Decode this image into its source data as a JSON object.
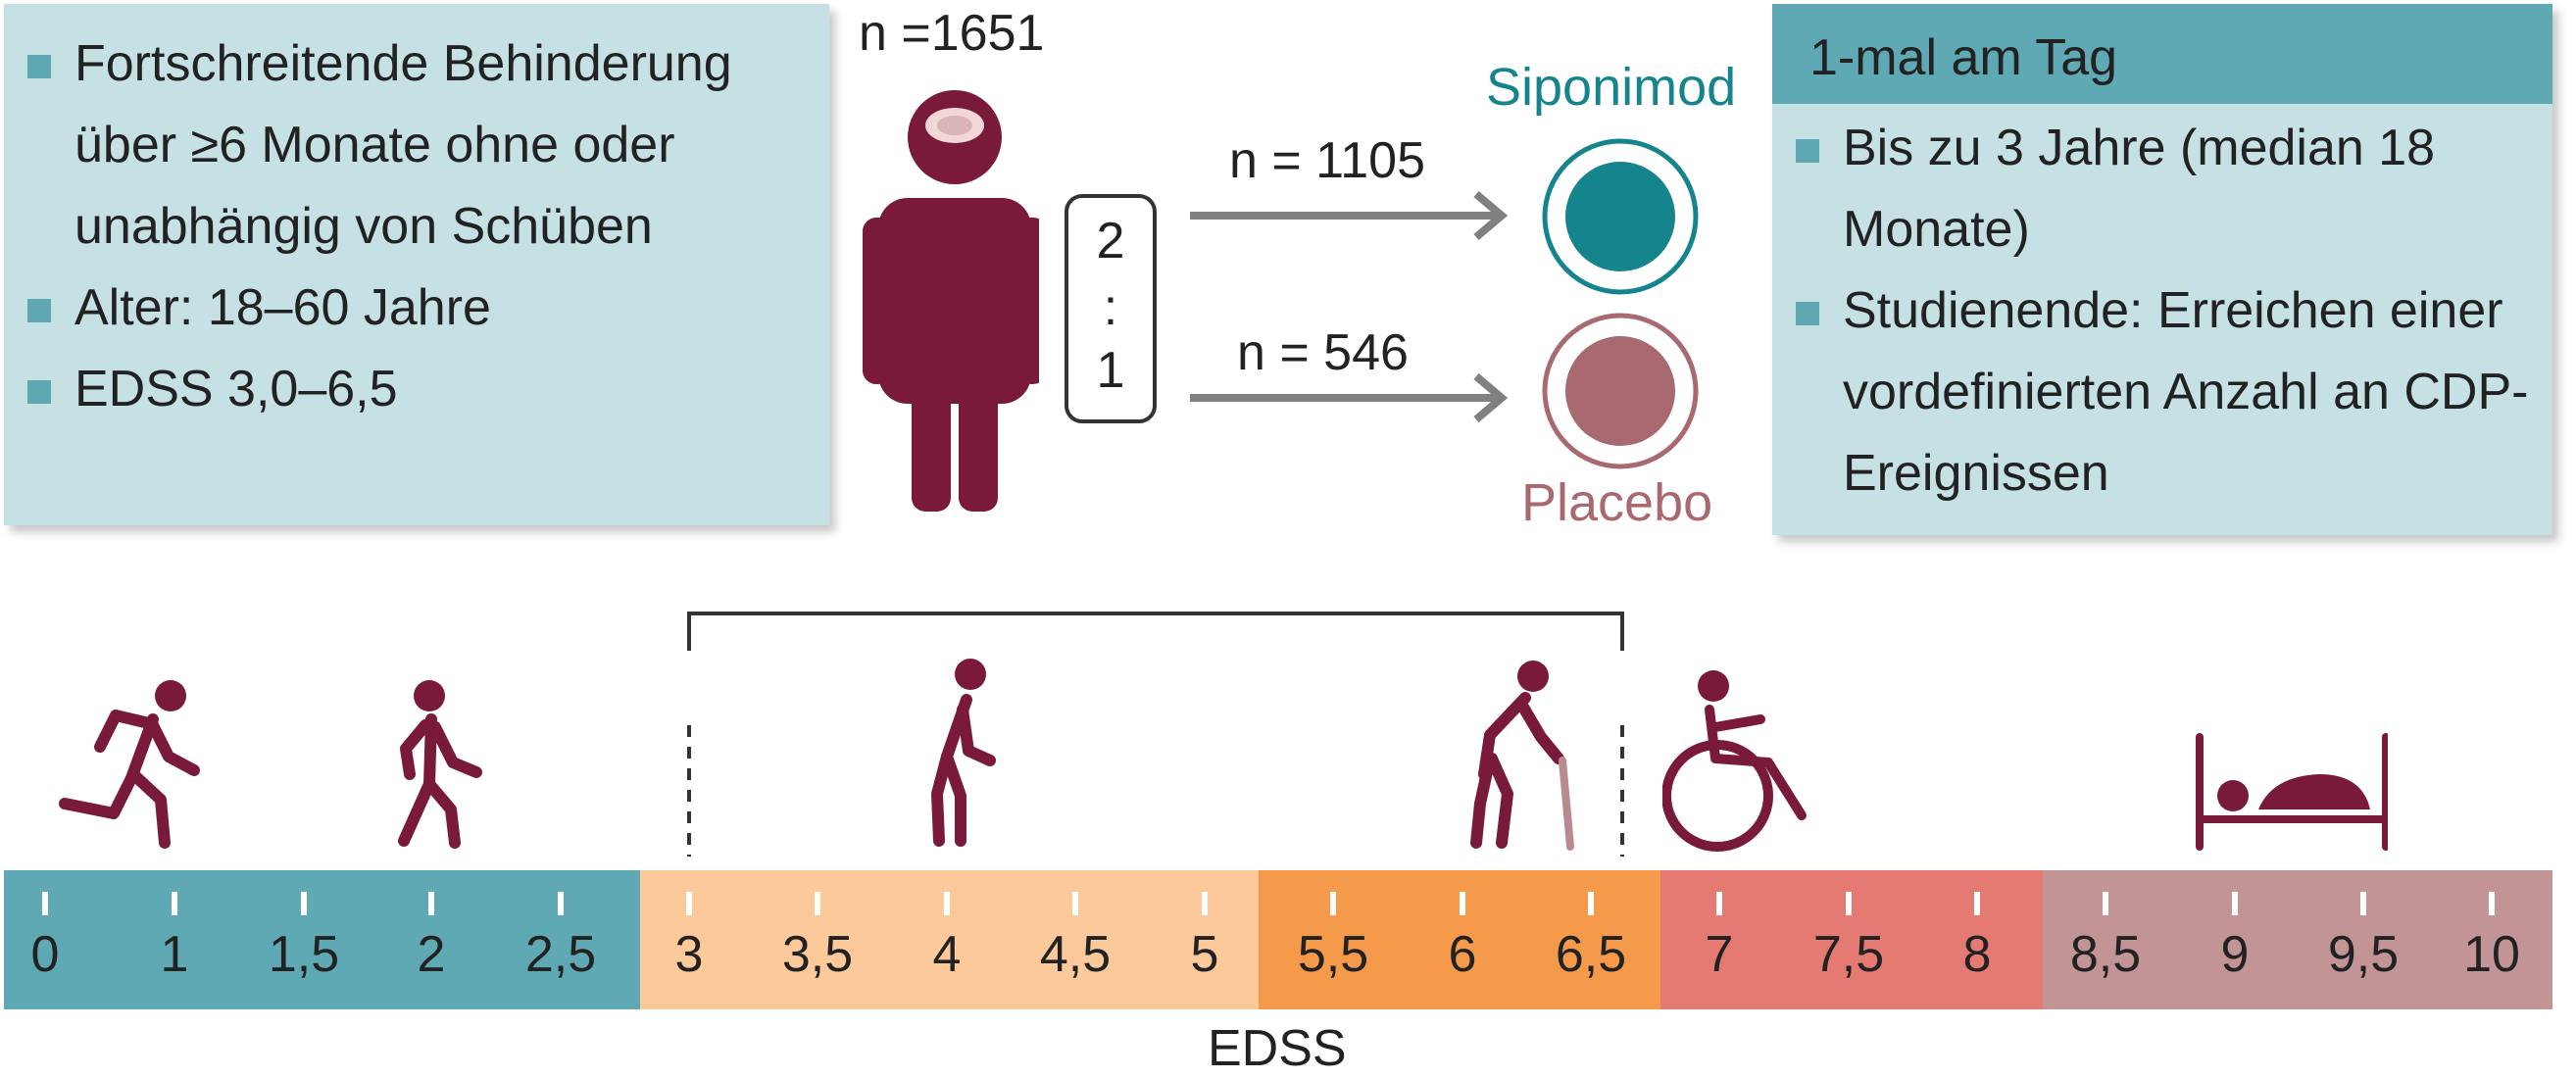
{
  "inclusion_criteria": {
    "items": [
      "Fortschreitende Behinderung über ≥6 Monate ohne oder unabhängig von Schüben",
      "Alter: 18–60 Jahre",
      "EDSS 3,0–6,5"
    ]
  },
  "study": {
    "total_n": "n =1651",
    "ratio_top": "2",
    "ratio_sep": ":",
    "ratio_bottom": "1",
    "arm_siponimod_n": "n = 1105",
    "arm_placebo_n": "n = 546",
    "arm_siponimod_label": "Siponimod",
    "arm_placebo_label": "Placebo"
  },
  "treatment_box": {
    "header": "1-mal am Tag",
    "items": [
      "Bis zu 3 Jahre (median 18 Monate)",
      "Studienende: Erreichen einer vordefinierten Anzahl an CDP-Ereignissen"
    ]
  },
  "edss_scale": {
    "axis_label": "EDSS",
    "ticks": [
      "0",
      "1",
      "1,5",
      "2",
      "2,5",
      "3",
      "3,5",
      "4",
      "4,5",
      "5",
      "5,5",
      "6",
      "6,5",
      "7",
      "7,5",
      "8",
      "8,5",
      "9",
      "9,5",
      "10"
    ],
    "segments": [
      {
        "from": 0,
        "to": 2.5,
        "color": "#5ea9b3"
      },
      {
        "from": 3,
        "to": 5,
        "color": "#fbc99a"
      },
      {
        "from": 5.5,
        "to": 6.5,
        "color": "#f59a4a"
      },
      {
        "from": 7,
        "to": 8,
        "color": "#e57a73"
      },
      {
        "from": 8.5,
        "to": 10,
        "color": "#c39495"
      }
    ],
    "bracket_range": [
      3,
      6.5
    ],
    "icons": [
      "running-person-icon",
      "walking-person-icon",
      "stooped-walking-person-icon",
      "person-with-cane-icon",
      "wheelchair-user-icon",
      "bedridden-person-icon"
    ]
  },
  "colors": {
    "maroon": "#7a1a3a",
    "siponimod": "#15848c",
    "placebo": "#a86a70",
    "arrow": "#808080",
    "box_bg": "#c5e1e4",
    "box_accent": "#5ea9b3"
  }
}
